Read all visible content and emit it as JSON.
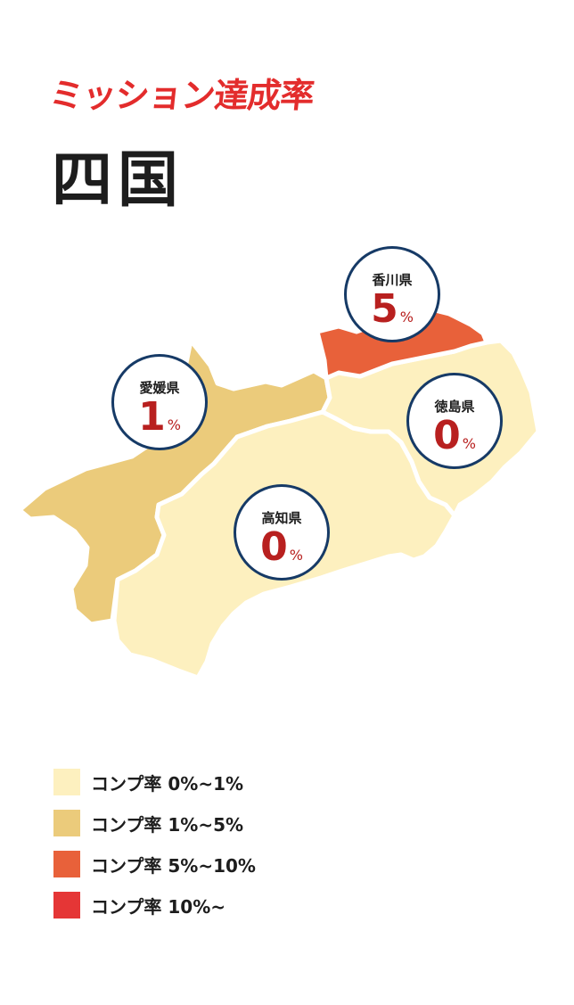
{
  "header": {
    "subtitle": "ミッション達成率",
    "title": "四国"
  },
  "prefectures": [
    {
      "key": "ehime",
      "name": "愛媛県",
      "value": "1",
      "unit": "%",
      "fill": "#ebcb7b"
    },
    {
      "key": "kagawa",
      "name": "香川県",
      "value": "5",
      "unit": "%",
      "fill": "#e8613a"
    },
    {
      "key": "tokushima",
      "name": "徳島県",
      "value": "0",
      "unit": "%",
      "fill": "#fdf0bf"
    },
    {
      "key": "kochi",
      "name": "高知県",
      "value": "0",
      "unit": "%",
      "fill": "#fdf0bf"
    }
  ],
  "legend": [
    {
      "label": "コンプ率 0%~1%",
      "color": "#fdf0bf"
    },
    {
      "label": "コンプ率 1%~5%",
      "color": "#ebcb7b"
    },
    {
      "label": "コンプ率 5%~10%",
      "color": "#e8613a"
    },
    {
      "label": "コンプ率 10%~",
      "color": "#e53636"
    }
  ],
  "colors": {
    "accent_red": "#e32c2c",
    "bubble_border": "#163a66",
    "value_red": "#b8201f"
  }
}
